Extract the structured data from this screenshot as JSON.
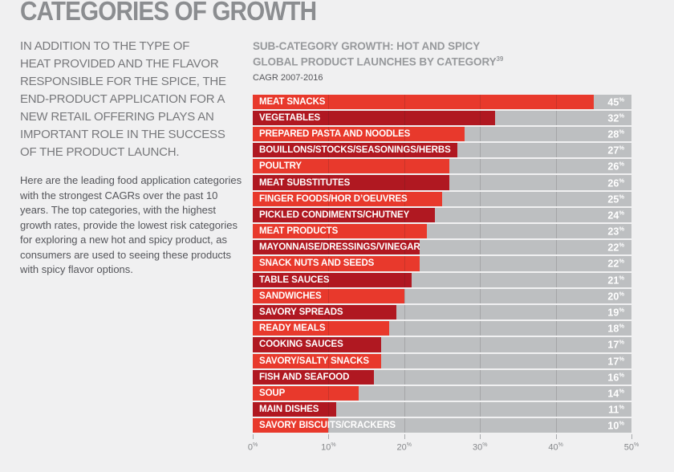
{
  "page": {
    "title": "CATEGORIES OF GROWTH",
    "background": "#f0f0f1"
  },
  "left": {
    "intro": "IN ADDITION TO THE TYPE OF\nHEAT PROVIDED AND THE FLAVOR\nRESPONSIBLE FOR THE SPICE, THE\nEND-PRODUCT APPLICATION FOR A\nNEW RETAIL OFFERING PLAYS AN\nIMPORTANT ROLE IN THE SUCCESS\nOF THE PRODUCT LAUNCH.",
    "body": "Here are the leading food application categories\nwith the strongest CAGRs over the past 10\nyears. The top categories, with the highest\ngrowth rates, provide the lowest risk categories\nfor exploring a new hot and spicy product, as\nconsumers are used to seeing these products\nwith spicy flavor options."
  },
  "chart": {
    "title_line1": "SUB-CATEGORY GROWTH: HOT AND SPICY",
    "title_line2": "GLOBAL PRODUCT LAUNCHES BY CATEGORY",
    "footnote_ref": "39",
    "subtitle": "CAGR 2007-2016"
  },
  "chart_data": {
    "type": "bar",
    "orientation": "horizontal",
    "title": "SUB-CATEGORY GROWTH: HOT AND SPICY GLOBAL PRODUCT LAUNCHES BY CATEGORY (footnote 39)",
    "subtitle": "CAGR 2007-2016",
    "unit": "%",
    "xlim": [
      0,
      50
    ],
    "x_ticks": [
      0,
      10,
      20,
      30,
      40,
      50
    ],
    "grid": true,
    "legend_position": "none",
    "value_labels_position": "right edge of track",
    "categories": [
      "MEAT SNACKS",
      "VEGETABLES",
      "PREPARED PASTA AND NOODLES",
      "BOUILLONS/STOCKS/SEASONINGS/HERBS",
      "POULTRY",
      "MEAT SUBSTITUTES",
      "FINGER FOODS/HOR D’OEUVRES",
      "PICKLED CONDIMENTS/CHUTNEY",
      "MEAT PRODUCTS",
      "MAYONNAISE/DRESSINGS/VINEGAR",
      "SNACK NUTS AND SEEDS",
      "TABLE SAUCES",
      "SANDWICHES",
      "SAVORY SPREADS",
      "READY MEALS",
      "COOKING SAUCES",
      "SAVORY/SALTY SNACKS",
      "FISH AND SEAFOOD",
      "SOUP",
      "MAIN DISHES",
      "SAVORY BISCUITS/CRACKERS"
    ],
    "values": [
      45,
      32,
      28,
      27,
      26,
      26,
      25,
      24,
      23,
      22,
      22,
      21,
      20,
      19,
      18,
      17,
      17,
      16,
      14,
      11,
      10
    ],
    "colors": {
      "bar_bright": "#e8392c",
      "bar_dark": "#b01821",
      "track": "#bdbfc1",
      "value_text": "#ffffff",
      "category_text": "#ffffff",
      "axis_text": "#85878a"
    }
  }
}
